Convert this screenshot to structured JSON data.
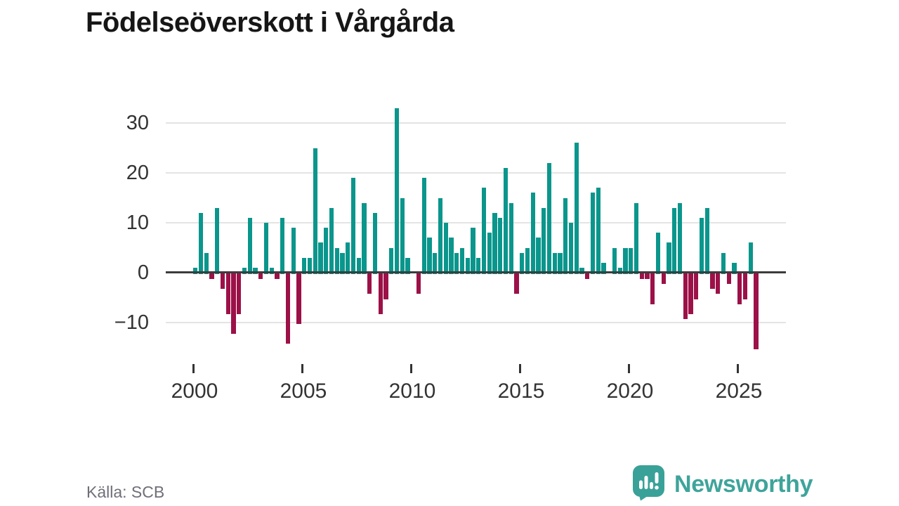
{
  "title": "Födelseöverskott i Vårgårda",
  "source_note": "Källa: SCB",
  "branding": {
    "name": "Newsworthy",
    "logo_icon": "speech-bubble-bar-chart-icon",
    "bubble_color": "#3aa198",
    "word_color": "#3ea49b"
  },
  "colors": {
    "positive_bar": "#0a968c",
    "negative_bar": "#9c1148",
    "zero_axis": "#3c3c3c",
    "gridline": "#e4e4e4",
    "axis_label": "#333333",
    "title_text": "#161616",
    "source_text": "#6f6f79"
  },
  "chart_data": {
    "type": "bar",
    "title": "Födelseöverskott i Vårgårda",
    "xlabel": "",
    "ylabel": "",
    "frequency": "quarterly",
    "start_year": 2000,
    "end_year": 2025,
    "ylim": [
      -17,
      34
    ],
    "grid": "horizontal",
    "legend": "none",
    "y_ticks": [
      30,
      20,
      10,
      0,
      -10
    ],
    "y_tick_labels": [
      "30",
      "20",
      "10",
      "0",
      "−10"
    ],
    "x_ticks_years": [
      2000,
      2005,
      2010,
      2015,
      2020,
      2025
    ],
    "x_tick_labels": [
      "2000",
      "2005",
      "2010",
      "2015",
      "2020",
      "2025"
    ],
    "values": [
      1,
      12,
      4,
      -1,
      13,
      -3,
      -8,
      -12,
      -8,
      1,
      11,
      1,
      -1,
      10,
      1,
      -1,
      11,
      -14,
      9,
      -10,
      3,
      3,
      25,
      6,
      9,
      13,
      5,
      4,
      6,
      19,
      3,
      14,
      -4,
      12,
      -8,
      -5,
      5,
      33,
      15,
      3,
      0,
      -4,
      19,
      7,
      4,
      15,
      10,
      7,
      4,
      5,
      3,
      9,
      3,
      17,
      8,
      12,
      11,
      21,
      14,
      -4,
      4,
      5,
      16,
      7,
      13,
      22,
      4,
      4,
      15,
      10,
      26,
      1,
      -1,
      16,
      17,
      2,
      0,
      5,
      1,
      5,
      5,
      14,
      -1,
      -1,
      -6,
      8,
      -2,
      6,
      13,
      14,
      -9,
      -8,
      -5,
      11,
      13,
      -3,
      -4,
      4,
      -2,
      2,
      -6,
      -5,
      6,
      -15
    ]
  }
}
